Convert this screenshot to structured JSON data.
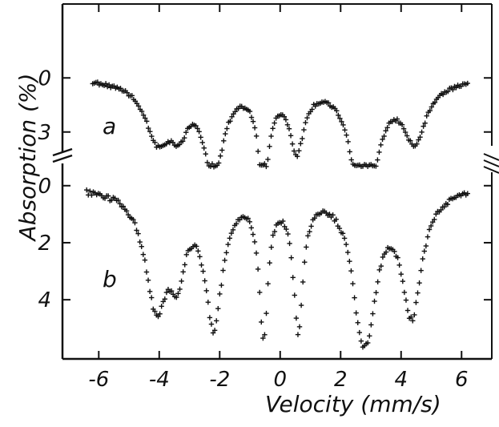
{
  "chart_data": {
    "type": "scatter",
    "title": "",
    "xlabel": "Velocity (mm/s)",
    "ylabel": "Absorption (%)",
    "xlim": [
      -7.2,
      7.0
    ],
    "x_ticks": [
      -6,
      -4,
      -2,
      0,
      2,
      4,
      6
    ],
    "x_tick_labels": [
      "-6",
      "-4",
      "-2",
      "0",
      "2",
      "4",
      "6"
    ],
    "grid": false,
    "axis_break": "left and right y-axes between the two traces",
    "panels": [
      {
        "label": "a",
        "ylim": [
          -2.1,
          5.1
        ],
        "y_ticks": [
          0,
          3
        ],
        "y_tick_labels": [
          "0",
          "3"
        ],
        "x_min": -6.2,
        "x_max": 6.2,
        "baseline": 0,
        "dips": [
          {
            "center": -4.05,
            "depth": 3.1,
            "width": 0.5
          },
          {
            "center": -3.35,
            "depth": 2.1,
            "width": 0.35
          },
          {
            "center": -2.2,
            "depth": 5.0,
            "width": 0.4
          },
          {
            "center": -0.55,
            "depth": 5.4,
            "width": 0.22
          },
          {
            "center": 0.55,
            "depth": 3.6,
            "width": 0.3
          },
          {
            "center": 2.65,
            "depth": 5.0,
            "width": 0.45
          },
          {
            "center": 3.05,
            "depth": 2.5,
            "width": 0.4
          },
          {
            "center": 4.45,
            "depth": 3.2,
            "width": 0.45
          }
        ]
      },
      {
        "label": "b",
        "ylim": [
          -0.05,
          5.85
        ],
        "y_ticks": [
          0,
          2,
          4
        ],
        "y_tick_labels": [
          "0",
          "2",
          "4"
        ],
        "x_min": -6.4,
        "x_max": 6.2,
        "baseline": 0,
        "dips": [
          {
            "center": -4.1,
            "depth": 4.0,
            "width": 0.45
          },
          {
            "center": -3.4,
            "depth": 2.3,
            "width": 0.3
          },
          {
            "center": -2.2,
            "depth": 4.6,
            "width": 0.35
          },
          {
            "center": -0.55,
            "depth": 4.9,
            "width": 0.18
          },
          {
            "center": 0.6,
            "depth": 4.7,
            "width": 0.2
          },
          {
            "center": 2.7,
            "depth": 4.2,
            "width": 0.4
          },
          {
            "center": 3.0,
            "depth": 1.8,
            "width": 0.35
          },
          {
            "center": 4.35,
            "depth": 4.3,
            "width": 0.4
          }
        ]
      }
    ]
  }
}
